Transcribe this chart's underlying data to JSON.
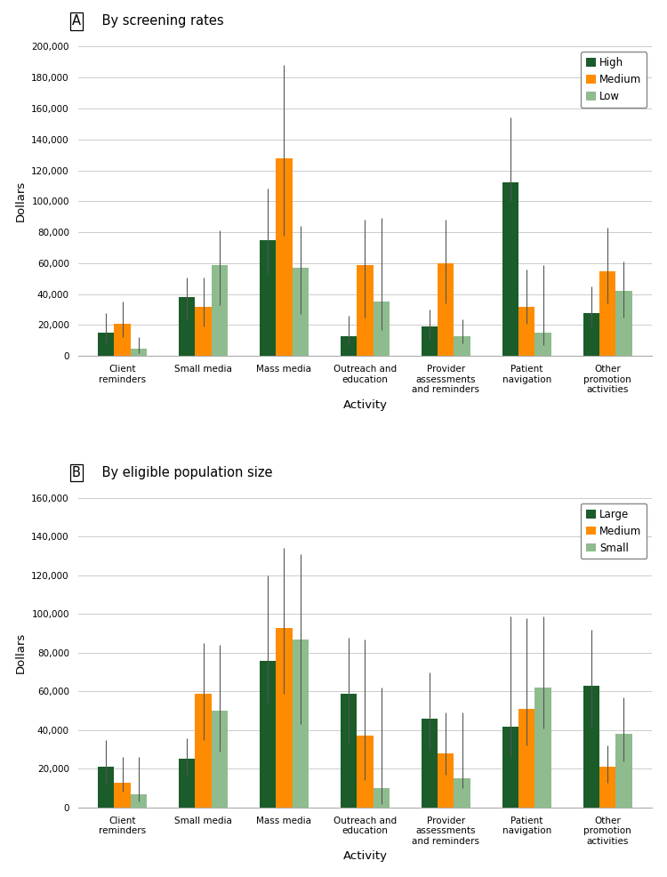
{
  "panel_A": {
    "title_label": "A",
    "title_text": " By screening rates",
    "categories": [
      "Client\nreminders",
      "Small media",
      "Mass media",
      "Outreach and\neducation",
      "Provider\nassessments\nand reminders",
      "Patient\nnavigation",
      "Other\npromotion\nactivities"
    ],
    "series": [
      {
        "label": "High",
        "color": "#1a5c2a",
        "values": [
          15000,
          38000,
          75000,
          13000,
          19000,
          112000,
          28000
        ],
        "yerr_low": [
          7000,
          14000,
          22000,
          6000,
          8000,
          12000,
          9000
        ],
        "yerr_high": [
          13000,
          13000,
          33000,
          13000,
          11000,
          42000,
          17000
        ]
      },
      {
        "label": "Medium",
        "color": "#ff8c00",
        "values": [
          21000,
          32000,
          128000,
          59000,
          60000,
          32000,
          55000
        ],
        "yerr_low": [
          9000,
          13000,
          50000,
          34000,
          26000,
          11000,
          21000
        ],
        "yerr_high": [
          14000,
          19000,
          60000,
          29000,
          28000,
          24000,
          28000
        ]
      },
      {
        "label": "Low",
        "color": "#8fbc8f",
        "values": [
          5000,
          59000,
          57000,
          35000,
          13000,
          15000,
          42000
        ],
        "yerr_low": [
          3000,
          26000,
          30000,
          18000,
          5000,
          8000,
          17000
        ],
        "yerr_high": [
          7000,
          22000,
          27000,
          54000,
          11000,
          44000,
          19000
        ]
      }
    ],
    "ylim": [
      0,
      200000
    ],
    "yticks": [
      0,
      20000,
      40000,
      60000,
      80000,
      100000,
      120000,
      140000,
      160000,
      180000,
      200000
    ],
    "ylabel": "Dollars"
  },
  "panel_B": {
    "title_label": "B",
    "title_text": " By eligible population size",
    "categories": [
      "Client\nreminders",
      "Small media",
      "Mass media",
      "Outreach and\neducation",
      "Provider\nassessments\nand reminders",
      "Patient\nnavigation",
      "Other\npromotion\nactivities"
    ],
    "series": [
      {
        "label": "Large",
        "color": "#1a5c2a",
        "values": [
          21000,
          25000,
          76000,
          59000,
          46000,
          42000,
          63000
        ],
        "yerr_low": [
          9000,
          8000,
          22000,
          26000,
          16000,
          16000,
          21000
        ],
        "yerr_high": [
          14000,
          11000,
          44000,
          29000,
          24000,
          57000,
          29000
        ]
      },
      {
        "label": "Medium",
        "color": "#ff8c00",
        "values": [
          13000,
          59000,
          93000,
          37000,
          28000,
          51000,
          21000
        ],
        "yerr_low": [
          5000,
          24000,
          34000,
          23000,
          11000,
          19000,
          8000
        ],
        "yerr_high": [
          13000,
          26000,
          41000,
          50000,
          21000,
          47000,
          11000
        ]
      },
      {
        "label": "Small",
        "color": "#8fbc8f",
        "values": [
          7000,
          50000,
          87000,
          10000,
          15000,
          62000,
          38000
        ],
        "yerr_low": [
          4000,
          21000,
          44000,
          8000,
          5000,
          21000,
          14000
        ],
        "yerr_high": [
          19000,
          34000,
          44000,
          52000,
          34000,
          37000,
          19000
        ]
      }
    ],
    "ylim": [
      0,
      160000
    ],
    "yticks": [
      0,
      20000,
      40000,
      60000,
      80000,
      100000,
      120000,
      140000,
      160000
    ],
    "ylabel": "Dollars"
  },
  "xlabel": "Activity",
  "bar_width": 0.2,
  "figure_bg": "#ffffff",
  "axes_bg": "#ffffff",
  "grid_color": "#cccccc",
  "legend_fontsize": 8.5,
  "axis_label_fontsize": 9.5,
  "tick_fontsize": 7.5,
  "title_fontsize": 10.5
}
